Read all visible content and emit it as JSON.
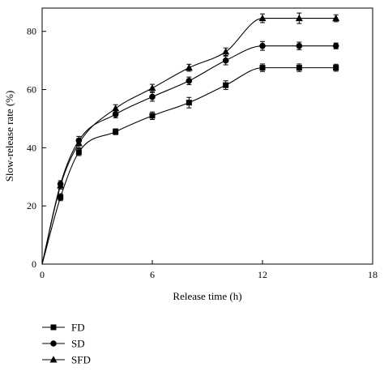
{
  "chart_data": {
    "type": "line",
    "title": "",
    "xlabel": "Release time (h)",
    "ylabel": "Slow-release rate (%)",
    "xlim": [
      0,
      18
    ],
    "ylim": [
      0,
      88
    ],
    "xticks": [
      0,
      6,
      12,
      18
    ],
    "yticks": [
      0,
      20,
      40,
      60,
      80
    ],
    "grid": false,
    "legend_position": "bottom-left",
    "error_bars": true,
    "series": [
      {
        "name": "FD",
        "marker": "square",
        "x": [
          0,
          1,
          2,
          4,
          6,
          8,
          10,
          12,
          14,
          16
        ],
        "y": [
          0,
          23,
          38.5,
          45.5,
          51,
          55.5,
          61.5,
          67.5,
          67.5,
          67.5
        ],
        "error": [
          0,
          1.2,
          1.2,
          1.0,
          1.3,
          1.8,
          1.5,
          1.3,
          1.3,
          1.2
        ]
      },
      {
        "name": "SD",
        "marker": "circle",
        "x": [
          0,
          1,
          2,
          4,
          6,
          8,
          10,
          12,
          14,
          16
        ],
        "y": [
          0,
          27.5,
          42.5,
          51.5,
          57.5,
          63,
          70,
          75,
          75,
          75
        ],
        "error": [
          0,
          1.2,
          1.4,
          1.2,
          1.5,
          1.3,
          1.5,
          1.5,
          1.3,
          1.0
        ]
      },
      {
        "name": "SFD",
        "marker": "triangle",
        "x": [
          0,
          1,
          2,
          4,
          6,
          8,
          10,
          12,
          14,
          16
        ],
        "y": [
          0,
          27,
          41.5,
          53.5,
          60.5,
          67.5,
          73,
          84.5,
          84.5,
          84.5
        ],
        "error": [
          0,
          1.2,
          1.5,
          1.3,
          1.3,
          1.2,
          1.3,
          1.5,
          1.8,
          1.2
        ]
      }
    ]
  }
}
